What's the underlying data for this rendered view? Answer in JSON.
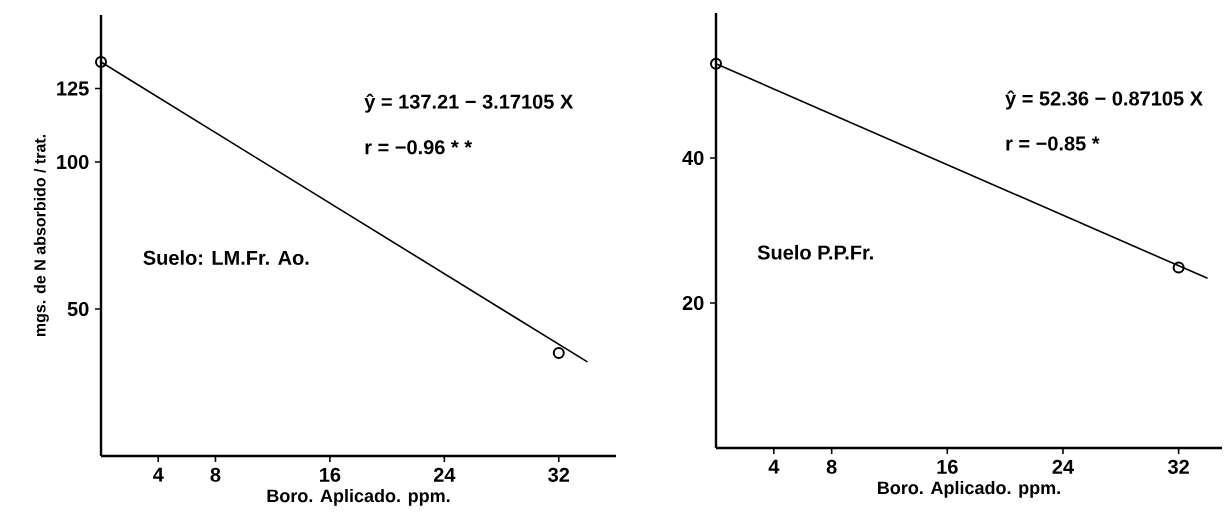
{
  "chart_data": [
    {
      "type": "line",
      "xlabel": "Boro. Aplicado. ppm.",
      "ylabel": "mgs. de N absorbido / trat.",
      "xlim": [
        0,
        36
      ],
      "ylim": [
        0,
        150
      ],
      "xticks": [
        4,
        8,
        16,
        24,
        32
      ],
      "yticks": [
        50,
        100,
        125
      ],
      "series": [
        {
          "color": "#000000",
          "x": [
            0,
            34
          ],
          "values": [
            134,
            32
          ]
        },
        {
          "type": "scatter",
          "marker": "circle",
          "color": "#000000",
          "x": [
            0,
            32
          ],
          "values": [
            134,
            35
          ]
        }
      ],
      "annotations": [
        "ŷ = 137.21 − 3.17105 X",
        "r = −0.96 * *",
        "Suelo: LM.Fr. Ao."
      ]
    },
    {
      "type": "line",
      "xlabel": "Boro. Aplicado. ppm.",
      "xlim": [
        0,
        35
      ],
      "ylim": [
        0,
        60
      ],
      "xticks": [
        4,
        8,
        16,
        24,
        32
      ],
      "yticks": [
        20,
        40
      ],
      "series": [
        {
          "color": "#000000",
          "x": [
            0,
            34
          ],
          "values": [
            53,
            23.4
          ]
        },
        {
          "type": "scatter",
          "marker": "circle",
          "color": "#000000",
          "x": [
            0,
            32
          ],
          "values": [
            53,
            24.9
          ]
        }
      ],
      "annotations": [
        "ŷ = 52.36 − 0.87105 X",
        "r = −0.85 *",
        "Suelo P.P.Fr."
      ]
    }
  ]
}
